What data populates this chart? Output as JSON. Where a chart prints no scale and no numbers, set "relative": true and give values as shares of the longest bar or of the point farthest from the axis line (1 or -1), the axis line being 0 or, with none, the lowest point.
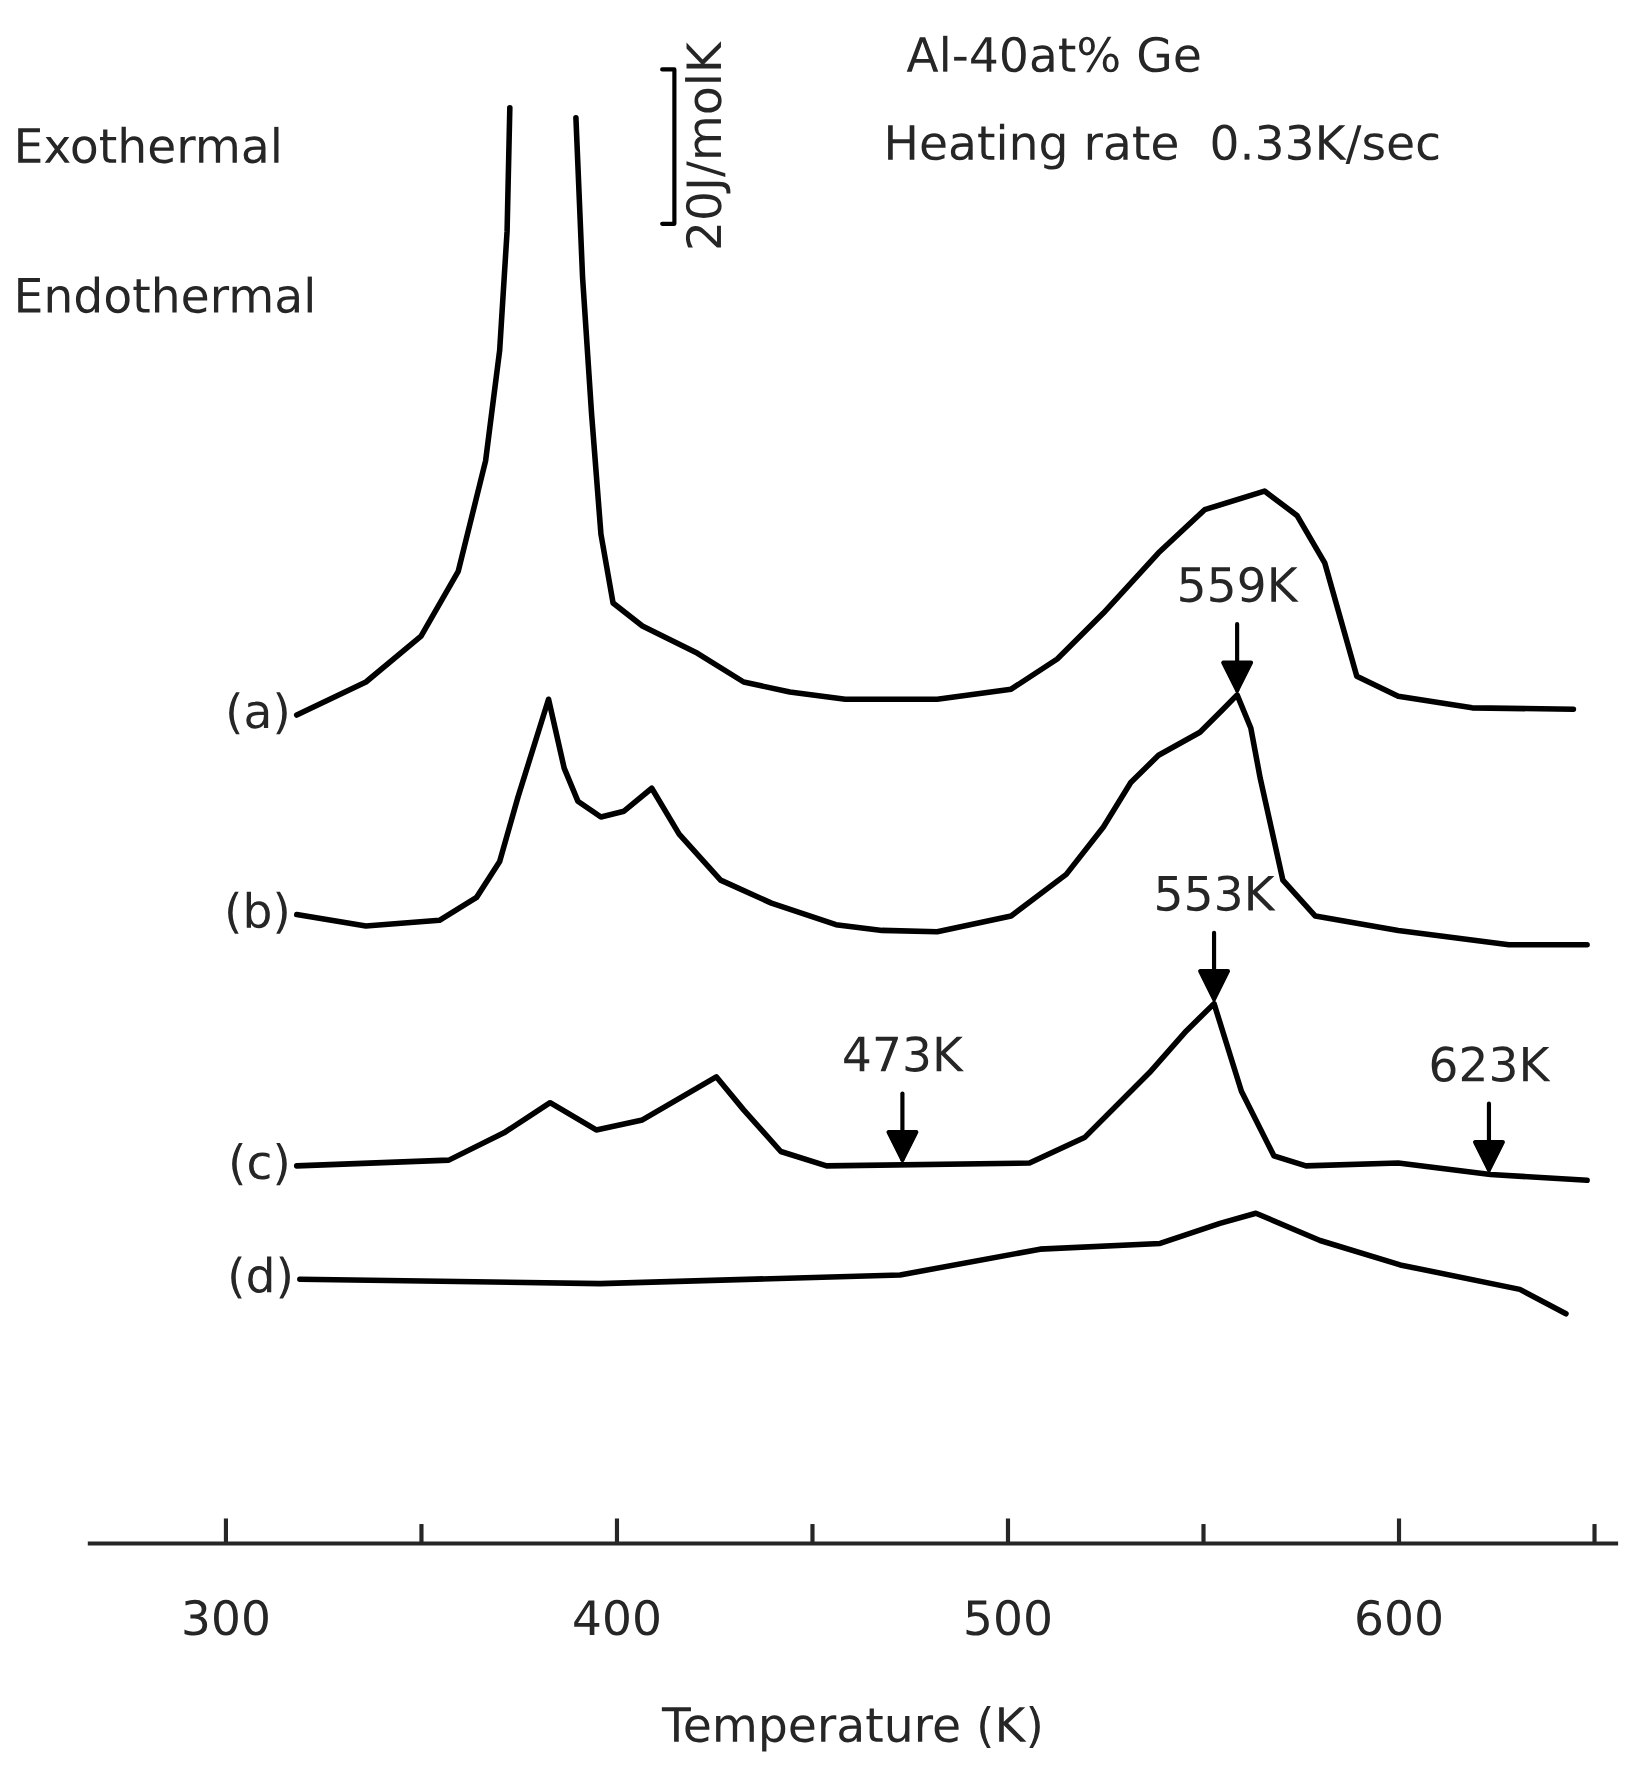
{
  "chart_data": {
    "type": "line",
    "relative": true,
    "xlabel": "Temperature (K)",
    "legend": false,
    "grid": false,
    "marker": "none",
    "line_style": "solid",
    "xlim": [
      265.2,
      655.5
    ],
    "xticks": [
      300,
      {
        "value": 350,
        "label": null
      },
      400,
      {
        "value": 450,
        "label": null
      },
      500,
      {
        "value": 550,
        "label": null
      },
      600,
      {
        "value": 650,
        "label": null
      }
    ],
    "series": [
      {
        "name": "(a)",
        "color": "#000000",
        "x": [
          318.1,
          335.8,
          349.9,
          359.4,
          366.4,
          370.0,
          371.9,
          372.6,
          381.0,
          389.5,
          391.2,
          393.5,
          395.9,
          399.0,
          406.5,
          420.6,
          432.4,
          444.2,
          458.4,
          481.9,
          500.8,
          512.6,
          524.4,
          538.5,
          550.3,
          565.6,
          573.9,
          581.0,
          589.2,
          599.8,
          618.7,
          644.6
        ],
        "values": [
          0.577,
          0.6,
          0.632,
          0.677,
          0.754,
          0.831,
          0.914,
          1,
          null,
          0.993,
          0.882,
          0.787,
          0.703,
          0.655,
          0.639,
          0.62,
          0.6,
          0.593,
          0.588,
          0.588,
          0.595,
          0.616,
          0.648,
          0.69,
          0.72,
          0.733,
          0.716,
          0.683,
          0.604,
          0.59,
          0.582,
          0.581
        ]
      },
      {
        "name": "(b)",
        "color": "#000000",
        "x": [
          318.1,
          335.8,
          354.6,
          364.1,
          370.0,
          374.7,
          382.5,
          386.5,
          390.0,
          395.9,
          401.8,
          408.9,
          415.9,
          426.5,
          439.5,
          456.0,
          467.8,
          481.9,
          500.8,
          514.9,
          524.4,
          531.4,
          538.5,
          549.1,
          555.0,
          558.6,
          562.1,
          564.5,
          570.3,
          578.6,
          599.8,
          628.1,
          648.1
        ],
        "values": [
          0.438,
          0.43,
          0.434,
          0.45,
          0.475,
          0.52,
          0.588,
          0.54,
          0.517,
          0.506,
          0.51,
          0.526,
          0.494,
          0.462,
          0.446,
          0.431,
          0.427,
          0.426,
          0.437,
          0.466,
          0.499,
          0.53,
          0.549,
          0.565,
          0.581,
          0.591,
          0.568,
          0.533,
          0.462,
          0.437,
          0.427,
          0.417,
          0.417
        ]
      },
      {
        "name": "(c)",
        "color": "#000000",
        "x": [
          318.1,
          357.0,
          371.1,
          382.9,
          394.7,
          406.5,
          425.4,
          432.4,
          441.9,
          453.6,
          505.5,
          519.7,
          536.2,
          545.6,
          552.7,
          559.7,
          568.0,
          576.2,
          599.8,
          623.4,
          648.1
        ],
        "values": [
          0.263,
          0.267,
          0.286,
          0.307,
          0.288,
          0.295,
          0.325,
          0.302,
          0.273,
          0.263,
          0.265,
          0.283,
          0.328,
          0.357,
          0.376,
          0.315,
          0.27,
          0.263,
          0.265,
          0.257,
          0.253
        ]
      },
      {
        "name": "(d)",
        "color": "#000000",
        "x": [
          318.9,
          395.7,
          472.4,
          508.2,
          538.9,
          554.2,
          563.4,
          579.8,
          600.3,
          630.9,
          642.7
        ],
        "values": [
          0.184,
          0.181,
          0.187,
          0.205,
          0.209,
          0.223,
          0.23,
          0.211,
          0.194,
          0.177,
          0.16
        ]
      }
    ],
    "annotations": [
      "Exothermal",
      "Endothermal",
      "20J/molK",
      "Al-40at% Ge",
      "Heating rate  0.33K/sec",
      {
        "text": "559K",
        "x": 558.6,
        "y": 0.591
      },
      {
        "text": "553K",
        "x": 552.7,
        "y": 0.376
      },
      {
        "text": "473K",
        "x": 473,
        "y": 0.264
      },
      {
        "text": "623K",
        "x": 623,
        "y": 0.257
      }
    ]
  }
}
